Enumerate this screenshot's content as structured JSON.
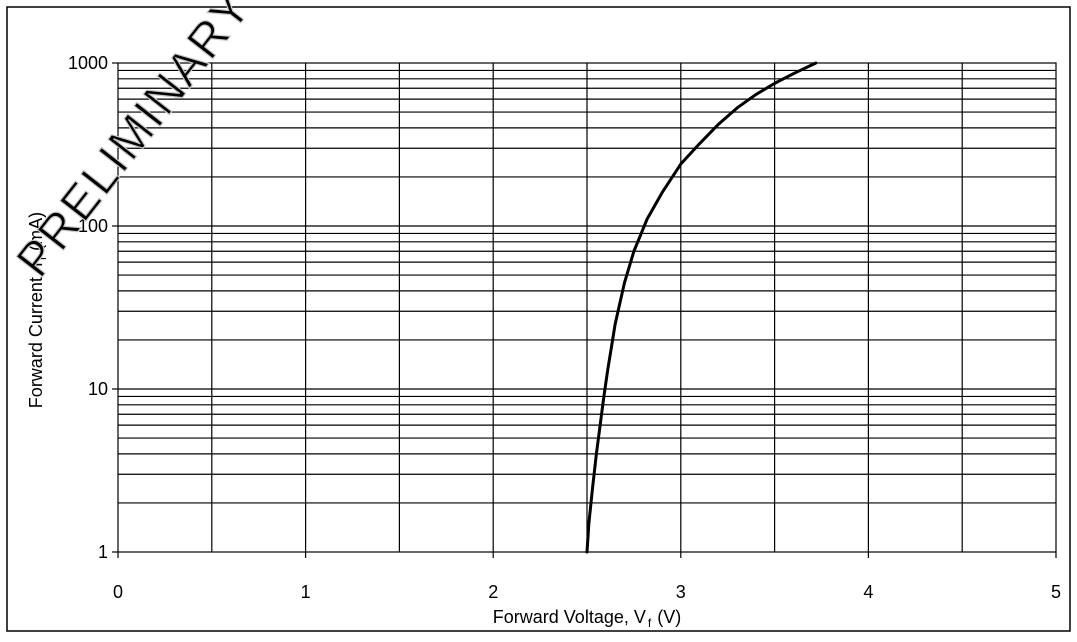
{
  "chart_data": {
    "type": "line",
    "xlabel_main": "Forward Voltage, V",
    "xlabel_sub": "f",
    "xlabel_unit": "(V)",
    "ylabel_main": "Forward Current, I",
    "ylabel_sub": "f",
    "ylabel_unit": "(mA)",
    "xlim": [
      0,
      5
    ],
    "ylim": [
      1,
      1000
    ],
    "y_scale": "log",
    "grid": true,
    "x_ticks": [
      0,
      1,
      2,
      3,
      4,
      5
    ],
    "x_tick_labels": [
      "0",
      "1",
      "2",
      "3",
      "4",
      "5"
    ],
    "x_minor_grid": [
      0.5,
      1.5,
      2.5,
      3.5,
      4.5
    ],
    "y_ticks": [
      1,
      10,
      100,
      1000
    ],
    "y_tick_labels": [
      "1",
      "10",
      "100",
      "1000"
    ],
    "series": [
      {
        "color": "#000000",
        "points": [
          [
            2.5,
            1
          ],
          [
            2.51,
            1.5
          ],
          [
            2.53,
            2.5
          ],
          [
            2.55,
            4
          ],
          [
            2.57,
            6
          ],
          [
            2.59,
            9
          ],
          [
            2.61,
            13
          ],
          [
            2.63,
            18
          ],
          [
            2.65,
            25
          ],
          [
            2.7,
            45
          ],
          [
            2.75,
            70
          ],
          [
            2.82,
            110
          ],
          [
            2.9,
            160
          ],
          [
            3.0,
            240
          ],
          [
            3.1,
            320
          ],
          [
            3.2,
            420
          ],
          [
            3.3,
            530
          ],
          [
            3.4,
            640
          ],
          [
            3.5,
            750
          ],
          [
            3.6,
            860
          ],
          [
            3.72,
            1000
          ]
        ]
      }
    ]
  },
  "watermark": "PRELIMINARY DOCUMENT"
}
